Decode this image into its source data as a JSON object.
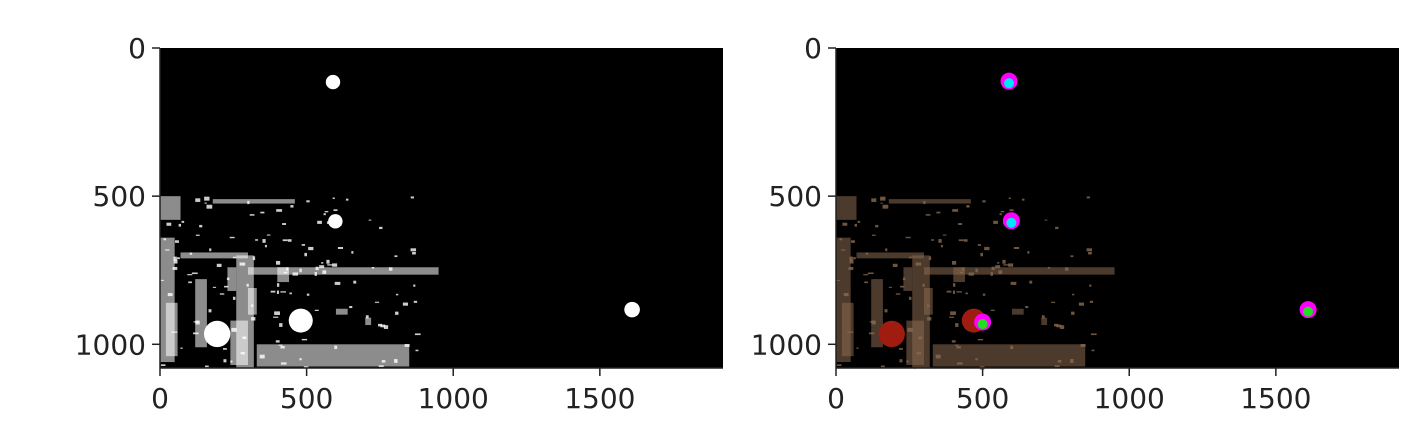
{
  "chart_data": [
    {
      "type": "image",
      "panel": "left",
      "xlim": [
        0,
        1920
      ],
      "ylim": [
        1080,
        0
      ],
      "xticks": [
        0,
        500,
        1000,
        1500
      ],
      "yticks": [
        0,
        500,
        1000
      ],
      "background": "#000000",
      "blobs": [
        {
          "x": 590,
          "y": 115,
          "r": 12,
          "color": "#ffffff"
        },
        {
          "x": 598,
          "y": 585,
          "r": 12,
          "color": "#ffffff"
        },
        {
          "x": 1610,
          "y": 883,
          "r": 13,
          "color": "#ffffff"
        },
        {
          "x": 195,
          "y": 965,
          "r": 22,
          "color": "#ffffff"
        },
        {
          "x": 480,
          "y": 920,
          "r": 20,
          "color": "#ffffff"
        }
      ],
      "noise_color": "#ffffff"
    },
    {
      "type": "image",
      "panel": "right",
      "xlim": [
        0,
        1920
      ],
      "ylim": [
        1080,
        0
      ],
      "xticks": [
        0,
        500,
        1000,
        1500
      ],
      "yticks": [
        0,
        500,
        1000
      ],
      "background": "#000000",
      "detections": [
        {
          "x": 590,
          "y": 112,
          "outer": "#ff00ff",
          "inner": "#00e5ff"
        },
        {
          "x": 598,
          "y": 583,
          "outer": "#ff00ff",
          "inner": "#00e5ff"
        },
        {
          "x": 1610,
          "y": 883,
          "outer": "#ff00ff",
          "inner": "#22dd22"
        },
        {
          "x": 500,
          "y": 925,
          "outer": "#ff00ff",
          "inner": "#22dd22"
        }
      ],
      "red_blobs": [
        {
          "x": 190,
          "y": 965,
          "r": 22,
          "color": "#a01c10"
        },
        {
          "x": 470,
          "y": 920,
          "r": 20,
          "color": "#a01c10"
        }
      ],
      "noise_color": "#8a6a50"
    }
  ]
}
